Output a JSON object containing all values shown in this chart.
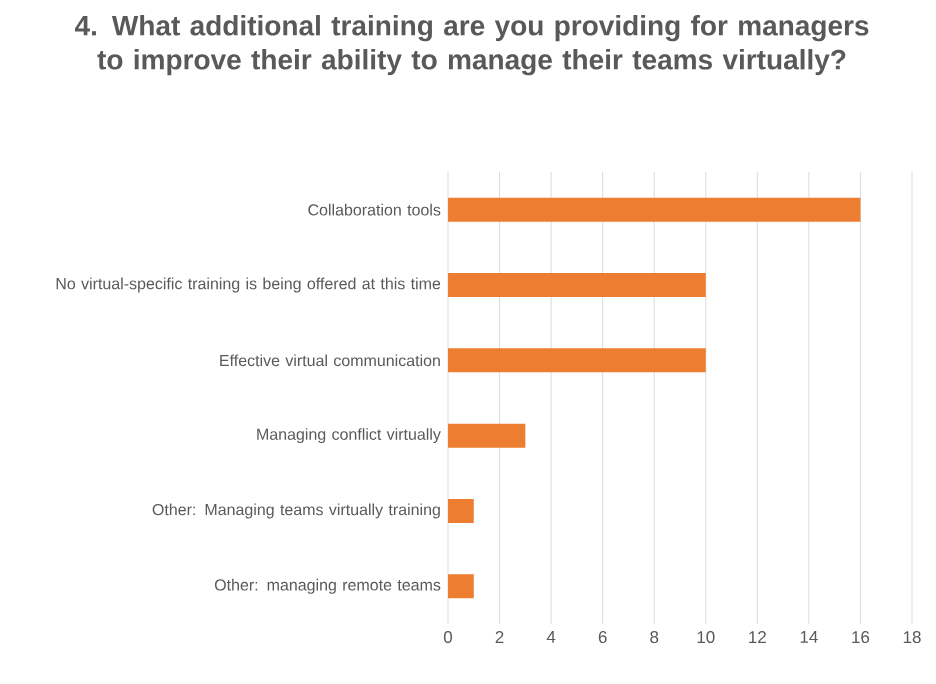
{
  "chart_data": {
    "type": "bar",
    "orientation": "horizontal",
    "title": "4. What additional training are you providing for managers to improve their ability to manage their teams virtually?",
    "categories": [
      "Collaboration tools",
      "No virtual-specific training is being offered at this time",
      "Effective virtual communication",
      "Managing conflict virtually",
      "Other: Managing teams virtually training",
      "Other: managing remote teams"
    ],
    "values": [
      16,
      10,
      10,
      3,
      1,
      1
    ],
    "color": "#ed7d31",
    "xlim": [
      0,
      18
    ],
    "xticks": [
      0,
      2,
      4,
      6,
      8,
      10,
      12,
      14,
      16,
      18
    ],
    "grid": "x"
  }
}
